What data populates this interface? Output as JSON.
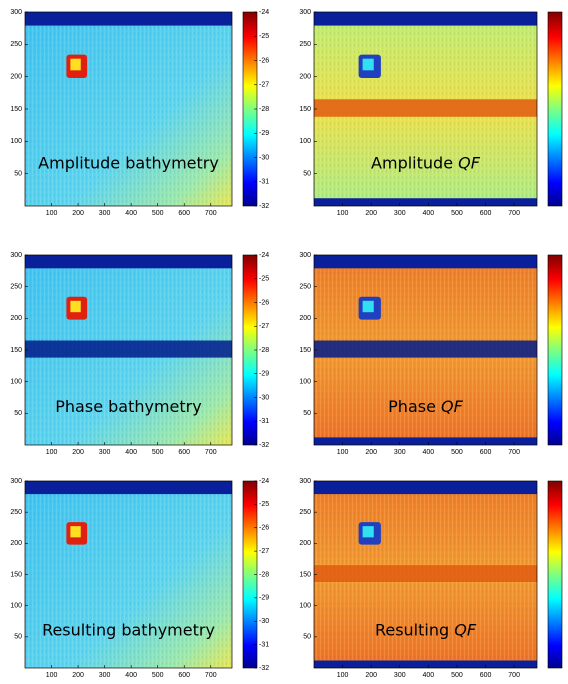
{
  "chart_data": [
    {
      "type": "heatmap",
      "annotation": "Amplitude bathymetry",
      "colormap": "jet",
      "xlim": [
        0,
        780
      ],
      "xticks": [
        100,
        200,
        300,
        400,
        500,
        600,
        700
      ],
      "ylim": [
        0,
        300
      ],
      "yticks": [
        50,
        100,
        150,
        200,
        250,
        300
      ],
      "clim": [
        -32,
        -24
      ],
      "cticks": [
        -24,
        -25,
        -26,
        -27,
        -28,
        -29,
        -30,
        -31,
        -32
      ]
    },
    {
      "type": "heatmap",
      "annotation": "Amplitude",
      "annotation_em": "QF",
      "colormap": "jet",
      "xlim": [
        0,
        780
      ],
      "xticks": [
        100,
        200,
        300,
        400,
        500,
        600,
        700
      ],
      "ylim": [
        0,
        300
      ],
      "yticks": [
        50,
        100,
        150,
        200,
        250,
        300
      ]
    },
    {
      "type": "heatmap",
      "annotation": "Phase bathymetry",
      "colormap": "jet",
      "xlim": [
        0,
        780
      ],
      "xticks": [
        100,
        200,
        300,
        400,
        500,
        600,
        700
      ],
      "ylim": [
        0,
        300
      ],
      "yticks": [
        50,
        100,
        150,
        200,
        250,
        300
      ],
      "clim": [
        -32,
        -24
      ],
      "cticks": [
        -24,
        -25,
        -26,
        -27,
        -28,
        -29,
        -30,
        -31,
        -32
      ]
    },
    {
      "type": "heatmap",
      "annotation": "Phase",
      "annotation_em": "QF",
      "colormap": "jet",
      "xlim": [
        0,
        780
      ],
      "xticks": [
        100,
        200,
        300,
        400,
        500,
        600,
        700
      ],
      "ylim": [
        0,
        300
      ],
      "yticks": [
        50,
        100,
        150,
        200,
        250,
        300
      ]
    },
    {
      "type": "heatmap",
      "annotation": "Resulting bathymetry",
      "colormap": "jet",
      "xlim": [
        0,
        780
      ],
      "xticks": [
        100,
        200,
        300,
        400,
        500,
        600,
        700
      ],
      "ylim": [
        0,
        300
      ],
      "yticks": [
        50,
        100,
        150,
        200,
        250,
        300
      ],
      "clim": [
        -32,
        -24
      ],
      "cticks": [
        -24,
        -25,
        -26,
        -27,
        -28,
        -29,
        -30,
        -31,
        -32
      ]
    },
    {
      "type": "heatmap",
      "annotation": "Resulting",
      "annotation_em": "QF",
      "colormap": "jet",
      "xlim": [
        0,
        780
      ],
      "xticks": [
        100,
        200,
        300,
        400,
        500,
        600,
        700
      ],
      "ylim": [
        0,
        300
      ],
      "yticks": [
        50,
        100,
        150,
        200,
        250,
        300
      ]
    }
  ]
}
